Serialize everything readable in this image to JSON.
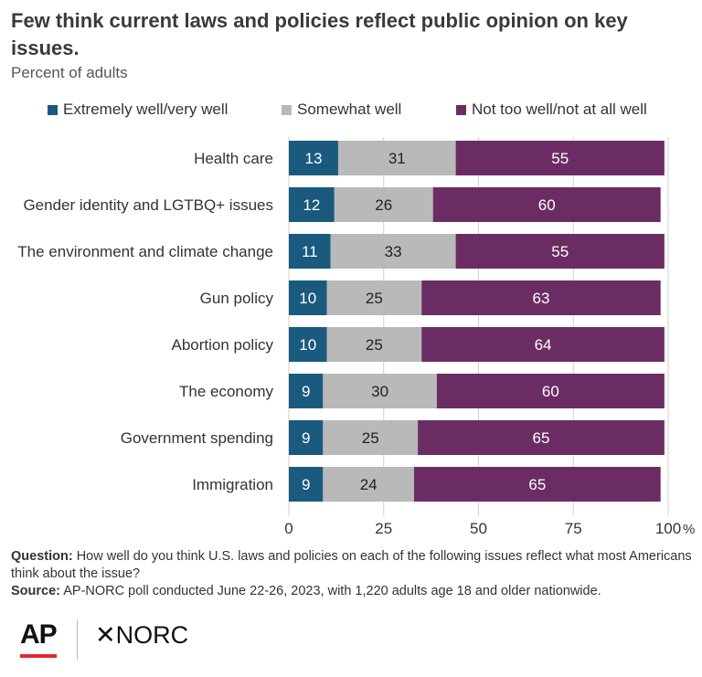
{
  "header": {
    "title": "Few think current laws and policies reflect public opinion on key issues.",
    "subtitle": "Percent of adults"
  },
  "legend": [
    {
      "label": "Extremely well/very well",
      "color": "#1a5a7e"
    },
    {
      "label": "Somewhat well",
      "color": "#b9b9b9"
    },
    {
      "label": "Not too well/not at all well",
      "color": "#6b2c63"
    }
  ],
  "chart_data": {
    "type": "bar",
    "orientation": "horizontal",
    "stacked": true,
    "categories": [
      "Health care",
      "Gender identity and LGTBQ+ issues",
      "The environment and climate change",
      "Gun policy",
      "Abortion policy",
      "The economy",
      "Government spending",
      "Immigration"
    ],
    "series": [
      {
        "name": "Extremely well/very well",
        "color": "#1a5a7e",
        "label_color": "#ffffff",
        "values": [
          13,
          12,
          11,
          10,
          10,
          9,
          9,
          9
        ]
      },
      {
        "name": "Somewhat well",
        "color": "#b9b9b9",
        "label_color": "#222222",
        "values": [
          31,
          26,
          33,
          25,
          25,
          30,
          25,
          24
        ]
      },
      {
        "name": "Not too well/not at all well",
        "color": "#6b2c63",
        "label_color": "#ffffff",
        "values": [
          55,
          60,
          55,
          63,
          64,
          60,
          65,
          65
        ]
      }
    ],
    "xlim": [
      0,
      100
    ],
    "xticks": [
      {
        "value": 0,
        "label": "0"
      },
      {
        "value": 25,
        "label": "25"
      },
      {
        "value": 50,
        "label": "50"
      },
      {
        "value": 75,
        "label": "75"
      },
      {
        "value": 100,
        "label": "100"
      }
    ],
    "x_unit": "%",
    "grid": true,
    "legend_position": "top"
  },
  "notes": {
    "question_label": "Question:",
    "question_text": "How well do you think U.S. laws and policies on each of the following issues reflect what most Americans think about the issue?",
    "source_label": "Source:",
    "source_text": "AP-NORC poll conducted June 22-26, 2023, with 1,220 adults age 18 and older nationwide."
  },
  "logos": {
    "ap": "AP",
    "norc": "NORC",
    "norc_mark": "✕"
  }
}
